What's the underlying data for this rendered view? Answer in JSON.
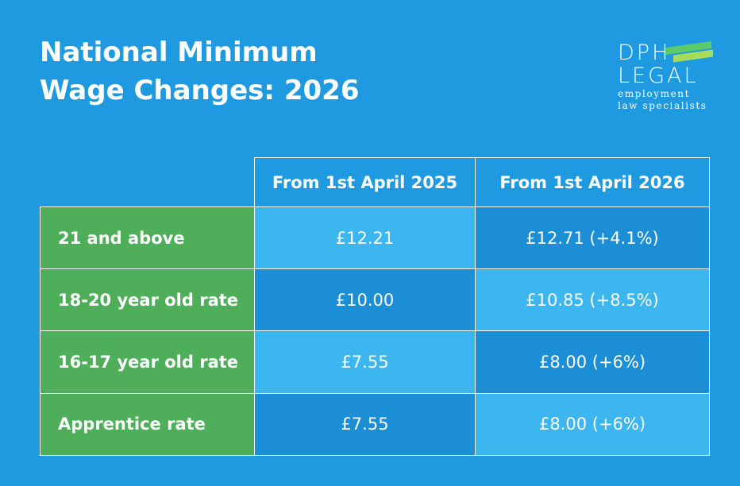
{
  "header": {
    "title": "National Minimum Wage Changes: 2026"
  },
  "logo": {
    "name_top": "DPH",
    "name_bottom": "LEGAL",
    "tagline_1": "employment",
    "tagline_2": "law specialists"
  },
  "table": {
    "columns": [
      "From 1st April 2025",
      "From 1st April 2026"
    ],
    "rows": [
      [
        "21 and above",
        "£12.21",
        "£12.71 (+4.1%)"
      ],
      [
        "18-20 year old rate",
        "£10.00",
        "£10.85 (+8.5%)"
      ],
      [
        "16-17 year old rate",
        "£7.55",
        "£8.00 (+6%)"
      ],
      [
        "Apprentice rate",
        "£7.55",
        "£8.00 (+6%)"
      ]
    ]
  }
}
